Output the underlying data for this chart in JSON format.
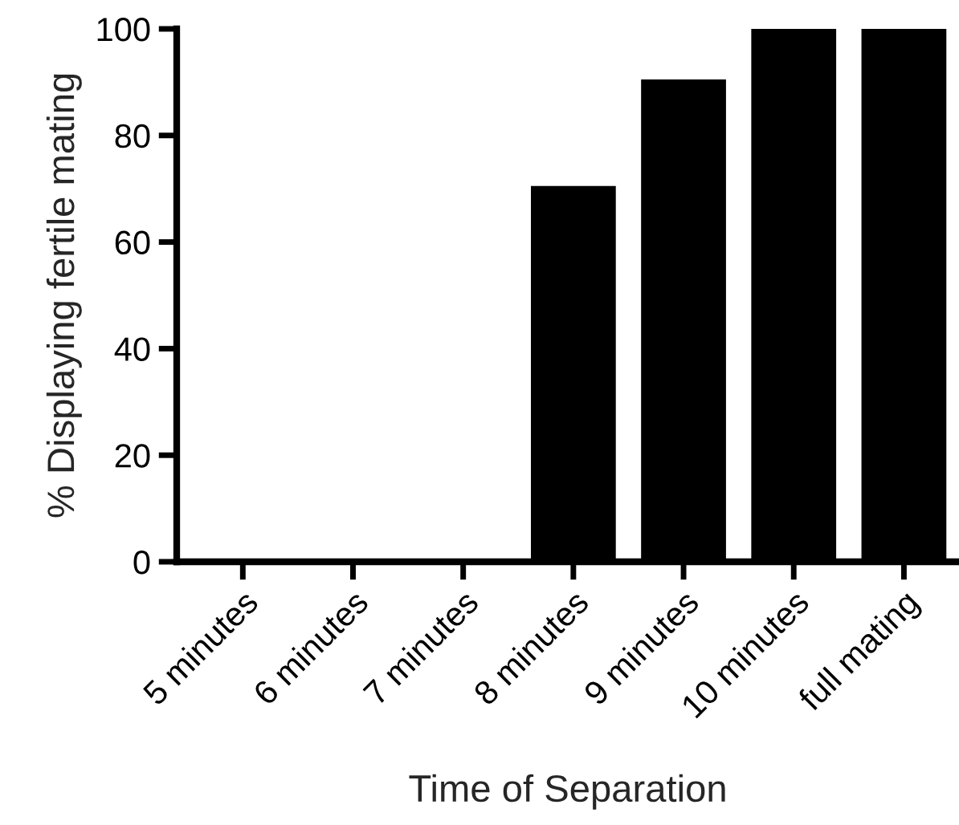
{
  "chart_data": {
    "type": "bar",
    "xlabel": "Time of Separation",
    "ylabel": "% Displaying fertile mating",
    "categories": [
      "5 minutes",
      "6 minutes",
      "7 minutes",
      "8 minutes",
      "9 minutes",
      "10 minutes",
      "full mating"
    ],
    "values": [
      0,
      0,
      0,
      70,
      90,
      100,
      100
    ],
    "color": "#000000",
    "ylim": [
      0,
      100
    ],
    "yticks": [
      0,
      20,
      40,
      60,
      80,
      100
    ],
    "grid": false
  }
}
